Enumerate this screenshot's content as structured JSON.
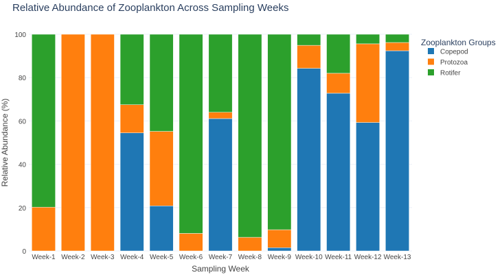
{
  "chart_data": {
    "type": "bar",
    "stacked": true,
    "title": "Relative Abundance of Zooplankton Across Sampling Weeks",
    "xlabel": "Sampling Week",
    "ylabel": "Relative Abundance (%)",
    "ylim": [
      0,
      100
    ],
    "yticks": [
      "0",
      "20",
      "40",
      "60",
      "80",
      "100"
    ],
    "grid": true,
    "legend_title": "Zooplankton Groups",
    "legend_position": "right",
    "categories": [
      "Week-1",
      "Week-2",
      "Week-3",
      "Week-4",
      "Week-5",
      "Week-6",
      "Week-7",
      "Week-8",
      "Week-9",
      "Week-10",
      "Week-11",
      "Week-12",
      "Week-13"
    ],
    "series": [
      {
        "name": "Copepod",
        "color": "#1f77b4",
        "values": [
          0,
          0,
          0,
          54.5,
          20.8,
          0,
          61.1,
          0,
          1.5,
          84.3,
          72.8,
          59.3,
          92.4
        ]
      },
      {
        "name": "Protozoa",
        "color": "#ff7f0e",
        "values": [
          20.2,
          100,
          100,
          13.0,
          34.4,
          8.1,
          2.9,
          6.3,
          8.3,
          10.6,
          9.2,
          36.3,
          3.8
        ]
      },
      {
        "name": "Rotifer",
        "color": "#2ca02c",
        "values": [
          79.8,
          0,
          0,
          32.5,
          44.8,
          91.9,
          36.0,
          93.7,
          90.2,
          5.1,
          18.0,
          4.4,
          3.8
        ]
      }
    ]
  }
}
